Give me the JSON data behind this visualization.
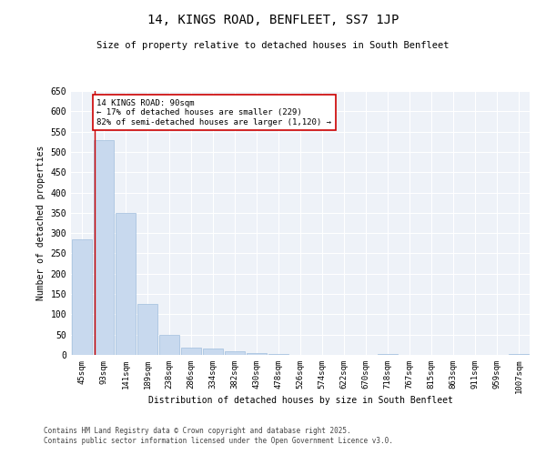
{
  "title": "14, KINGS ROAD, BENFLEET, SS7 1JP",
  "subtitle": "Size of property relative to detached houses in South Benfleet",
  "xlabel": "Distribution of detached houses by size in South Benfleet",
  "ylabel": "Number of detached properties",
  "bar_color": "#c8d9ee",
  "bar_edge_color": "#a0bedd",
  "categories": [
    "45sqm",
    "93sqm",
    "141sqm",
    "189sqm",
    "238sqm",
    "286sqm",
    "334sqm",
    "382sqm",
    "430sqm",
    "478sqm",
    "526sqm",
    "574sqm",
    "622sqm",
    "670sqm",
    "718sqm",
    "767sqm",
    "815sqm",
    "863sqm",
    "911sqm",
    "959sqm",
    "1007sqm"
  ],
  "values": [
    285,
    530,
    350,
    125,
    50,
    18,
    15,
    8,
    5,
    3,
    0,
    0,
    0,
    0,
    3,
    0,
    0,
    0,
    0,
    0,
    2
  ],
  "ylim": [
    0,
    650
  ],
  "yticks": [
    0,
    50,
    100,
    150,
    200,
    250,
    300,
    350,
    400,
    450,
    500,
    550,
    600,
    650
  ],
  "property_line_x": 0.57,
  "annotation_text": "14 KINGS ROAD: 90sqm\n← 17% of detached houses are smaller (229)\n82% of semi-detached houses are larger (1,120) →",
  "annotation_box_color": "#ffffff",
  "annotation_border_color": "#cc0000",
  "vline_color": "#cc0000",
  "footer_line1": "Contains HM Land Registry data © Crown copyright and database right 2025.",
  "footer_line2": "Contains public sector information licensed under the Open Government Licence v3.0.",
  "background_color": "#eef2f8",
  "grid_color": "#ffffff",
  "fig_bg_color": "#ffffff"
}
